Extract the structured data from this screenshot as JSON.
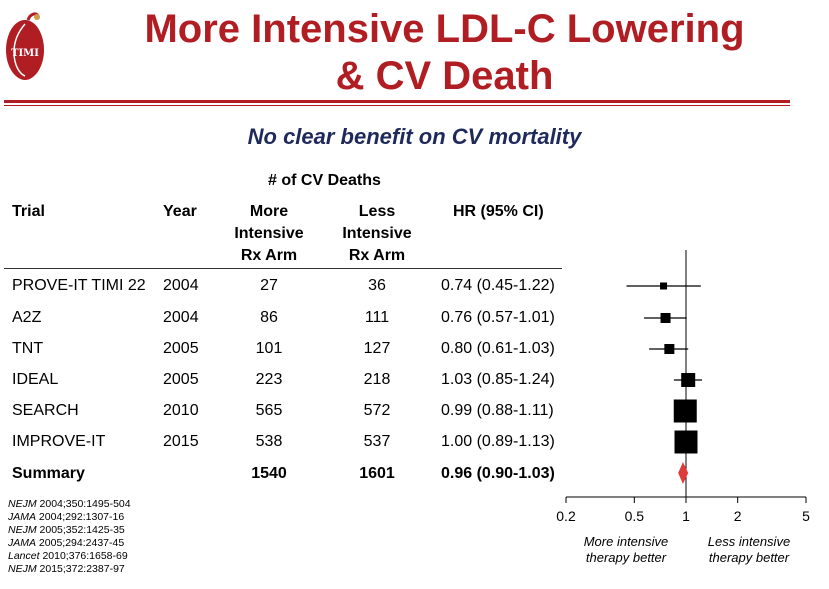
{
  "logo_text": "TIMI",
  "title_line1": "More Intensive LDL-C Lowering",
  "title_line2": "& CV Death",
  "subtitle": "No clear benefit on CV mortality",
  "colors": {
    "title": "#b01e23",
    "subtitle": "#1f2a5c",
    "summary_marker": "#e03b3b"
  },
  "table": {
    "group_header": "# of CV Deaths",
    "col_trial": "Trial",
    "col_year": "Year",
    "col_more": "More Intensive Rx Arm",
    "col_more_lines": [
      "More",
      "Intensive",
      "Rx Arm"
    ],
    "col_less_lines": [
      "Less",
      "Intensive",
      "Rx Arm"
    ],
    "col_hr": "HR (95% CI)",
    "rows": [
      {
        "trial": "PROVE-IT TIMI 22",
        "year": "2004",
        "more": "27",
        "less": "36",
        "hr": "0.74 (0.45-1.22)"
      },
      {
        "trial": "A2Z",
        "year": "2004",
        "more": "86",
        "less": "111",
        "hr": "0.76 (0.57-1.01)"
      },
      {
        "trial": "TNT",
        "year": "2005",
        "more": "101",
        "less": "127",
        "hr": "0.80 (0.61-1.03)"
      },
      {
        "trial": "IDEAL",
        "year": "2005",
        "more": "223",
        "less": "218",
        "hr": "1.03 (0.85-1.24)"
      },
      {
        "trial": "SEARCH",
        "year": "2010",
        "more": "565",
        "less": "572",
        "hr": "0.99 (0.88-1.11)"
      },
      {
        "trial": "IMPROVE-IT",
        "year": "2015",
        "more": "538",
        "less": "537",
        "hr": "1.00 (0.89-1.13)"
      }
    ],
    "summary": {
      "trial": "Summary",
      "year": "",
      "more": "1540",
      "less": "1601",
      "hr": "0.96 (0.90-1.03)"
    }
  },
  "references": [
    {
      "journal": "NEJM",
      "cite": "2004;350:1495-504"
    },
    {
      "journal": "JAMA",
      "cite": "2004;292:1307-16"
    },
    {
      "journal": "NEJM",
      "cite": "2005;352:1425-35"
    },
    {
      "journal": "JAMA",
      "cite": "2005;294:2437-45"
    },
    {
      "journal": "Lancet",
      "cite": "2010;376:1658-69"
    },
    {
      "journal": "NEJM",
      "cite": "2015;372:2387-97"
    }
  ],
  "chart_data": {
    "type": "forest",
    "x_scale": "log",
    "xlim": [
      0.2,
      5
    ],
    "x_ticks": [
      0.2,
      0.5,
      1,
      2,
      5
    ],
    "x_tick_labels": [
      "0.2",
      "0.5",
      "1",
      "2",
      "5"
    ],
    "reference_line": 1,
    "left_label": "More intensive therapy better",
    "right_label": "Less intensive therapy better",
    "points": [
      {
        "label": "PROVE-IT TIMI 22",
        "hr": 0.74,
        "lo": 0.45,
        "hi": 1.22,
        "weight": 1
      },
      {
        "label": "A2Z",
        "hr": 0.76,
        "lo": 0.57,
        "hi": 1.01,
        "weight": 2
      },
      {
        "label": "TNT",
        "hr": 0.8,
        "lo": 0.61,
        "hi": 1.03,
        "weight": 2
      },
      {
        "label": "IDEAL",
        "hr": 1.03,
        "lo": 0.85,
        "hi": 1.24,
        "weight": 3
      },
      {
        "label": "SEARCH",
        "hr": 0.99,
        "lo": 0.88,
        "hi": 1.11,
        "weight": 5
      },
      {
        "label": "IMPROVE-IT",
        "hr": 1.0,
        "lo": 0.89,
        "hi": 1.13,
        "weight": 5
      }
    ],
    "summary": {
      "label": "Summary",
      "hr": 0.96,
      "lo": 0.9,
      "hi": 1.03
    }
  }
}
